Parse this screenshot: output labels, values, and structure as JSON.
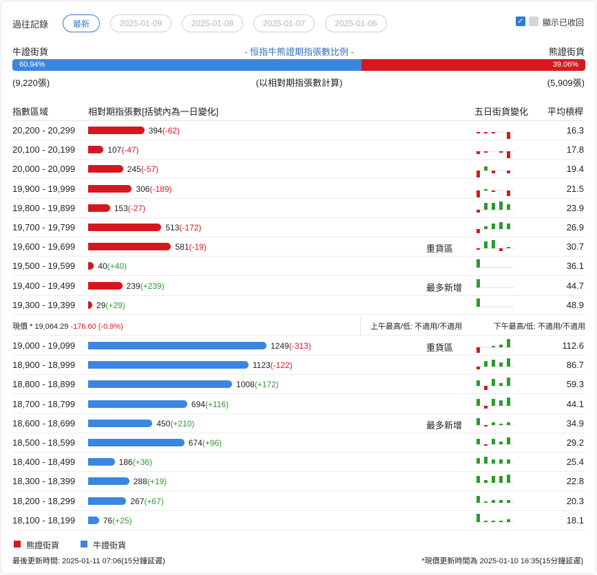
{
  "history": {
    "label": "過往記錄",
    "buttons": [
      "最新",
      "2025-01-09",
      "2025-01-08",
      "2025-01-07",
      "2025-01-06"
    ],
    "show_recalled_label": "顯示已收回"
  },
  "ratio": {
    "bull_label": "牛證街貨",
    "bear_label": "熊證街貨",
    "title": "- 恒指牛熊證期指張數比例 -",
    "bull_pct_text": "60.94%",
    "bear_pct_text": "39.06%",
    "bull_pct": 60.94,
    "bull_count": "(9,220張)",
    "bear_count": "(5,909張)",
    "note": "(以相對期指張數計算)"
  },
  "table": {
    "col_range": "指數區域",
    "col_contracts": "相對期指張數[括號內為一日變化]",
    "col_five_day": "五日街貨變化",
    "col_avg": "平均槓桿"
  },
  "bear_rows": [
    {
      "range": "20,200 - 20,299",
      "value": "394",
      "change": "(-62)",
      "change_sign": "neg",
      "tag": "",
      "avg": "16.3",
      "spark": [
        -1,
        -1,
        -1,
        0,
        -6
      ]
    },
    {
      "range": "20,100 - 20,199",
      "value": "107",
      "change": "(-47)",
      "change_sign": "neg",
      "tag": "",
      "avg": "17.8",
      "spark": [
        -2,
        -1,
        0,
        -1,
        -5
      ]
    },
    {
      "range": "20,000 - 20,099",
      "value": "245",
      "change": "(-57)",
      "change_sign": "neg",
      "tag": "",
      "avg": "19.4",
      "spark": [
        -6,
        3,
        -2,
        0,
        -2
      ]
    },
    {
      "range": "19,900 - 19,999",
      "value": "306",
      "change": "(-189)",
      "change_sign": "neg",
      "tag": "",
      "avg": "21.5",
      "spark": [
        -6,
        1,
        -1,
        0,
        -4
      ]
    },
    {
      "range": "19,800 - 19,899",
      "value": "153",
      "change": "(-27)",
      "change_sign": "neg",
      "tag": "",
      "avg": "23.9",
      "spark": [
        -2,
        5,
        5,
        6,
        4
      ]
    },
    {
      "range": "19,700 - 19,799",
      "value": "513",
      "change": "(-172)",
      "change_sign": "neg",
      "tag": "",
      "avg": "26.9",
      "spark": [
        -3,
        2,
        4,
        5,
        4
      ]
    },
    {
      "range": "19,600 - 19,699",
      "value": "581",
      "change": "(-19)",
      "change_sign": "neg",
      "tag": "重貨區",
      "avg": "30.7",
      "spark": [
        -1,
        5,
        6,
        -2,
        1
      ]
    },
    {
      "range": "19,500 - 19,599",
      "value": "40",
      "change": "(+40)",
      "change_sign": "pos",
      "tag": "",
      "avg": "36.1",
      "spark": [
        6,
        0,
        0,
        0,
        0
      ]
    },
    {
      "range": "19,400 - 19,499",
      "value": "239",
      "change": "(+239)",
      "change_sign": "pos",
      "tag": "最多新增",
      "avg": "44.7",
      "spark": [
        6,
        0,
        0,
        0,
        0
      ]
    },
    {
      "range": "19,300 - 19,399",
      "value": "29",
      "change": "(+29)",
      "change_sign": "pos",
      "tag": "",
      "avg": "48.9",
      "spark": [
        6,
        0,
        0,
        0,
        0
      ]
    }
  ],
  "price": {
    "label": "現價 *  19,064.29",
    "change": "-176.60 (-0.9%)",
    "am": "上午最高/低: 不適用/不適用",
    "pm": "下午最高/低: 不適用/不適用"
  },
  "bull_rows": [
    {
      "range": "19,000 - 19,099",
      "value": "1249",
      "change": "(-313)",
      "change_sign": "neg",
      "tag": "重貨區",
      "avg": "112.6",
      "spark": [
        -4,
        0,
        1,
        2,
        6
      ]
    },
    {
      "range": "18,900 - 18,999",
      "value": "1123",
      "change": "(-122)",
      "change_sign": "neg",
      "tag": "",
      "avg": "86.7",
      "spark": [
        -2,
        4,
        5,
        3,
        6
      ]
    },
    {
      "range": "18,800 - 18,899",
      "value": "1008",
      "change": "(+172)",
      "change_sign": "pos",
      "tag": "",
      "avg": "59.3",
      "spark": [
        4,
        -3,
        5,
        2,
        6
      ]
    },
    {
      "range": "18,700 - 18,799",
      "value": "694",
      "change": "(+116)",
      "change_sign": "pos",
      "tag": "",
      "avg": "44.1",
      "spark": [
        5,
        -2,
        5,
        4,
        6
      ]
    },
    {
      "range": "18,600 - 18,699",
      "value": "450",
      "change": "(+210)",
      "change_sign": "pos",
      "tag": "最多新增",
      "avg": "34.9",
      "spark": [
        5,
        -1,
        2,
        1,
        2
      ]
    },
    {
      "range": "18,500 - 18,599",
      "value": "674",
      "change": "(+96)",
      "change_sign": "pos",
      "tag": "",
      "avg": "29.2",
      "spark": [
        4,
        -1,
        4,
        2,
        5
      ]
    },
    {
      "range": "18,400 - 18,499",
      "value": "186",
      "change": "(+36)",
      "change_sign": "pos",
      "tag": "",
      "avg": "25.4",
      "spark": [
        4,
        5,
        3,
        3,
        3
      ]
    },
    {
      "range": "18,300 - 18,399",
      "value": "288",
      "change": "(+19)",
      "change_sign": "pos",
      "tag": "",
      "avg": "22.8",
      "spark": [
        5,
        2,
        5,
        5,
        6
      ]
    },
    {
      "range": "18,200 - 18,299",
      "value": "267",
      "change": "(+67)",
      "change_sign": "pos",
      "tag": "",
      "avg": "20.3",
      "spark": [
        5,
        1,
        2,
        2,
        2
      ]
    },
    {
      "range": "18,100 - 18,199",
      "value": "76",
      "change": "(+25)",
      "change_sign": "pos",
      "tag": "",
      "avg": "18.1",
      "spark": [
        6,
        1,
        1,
        1,
        2
      ]
    }
  ],
  "legend": {
    "bear": "熊證街貨",
    "bull": "牛證街貨"
  },
  "colors": {
    "bear": "#d7171f",
    "bull": "#3a86e0",
    "spark_up": "#2e9a2e",
    "spark_down": "#d7171f",
    "accent": "#2f7bd6"
  },
  "footer": {
    "updated": "最後更新時間: 2025-01-11 07:06(15分鐘延遲)",
    "price_updated": "*現價更新時間為 2025-01-10 16:35(15分鐘延遲)"
  }
}
